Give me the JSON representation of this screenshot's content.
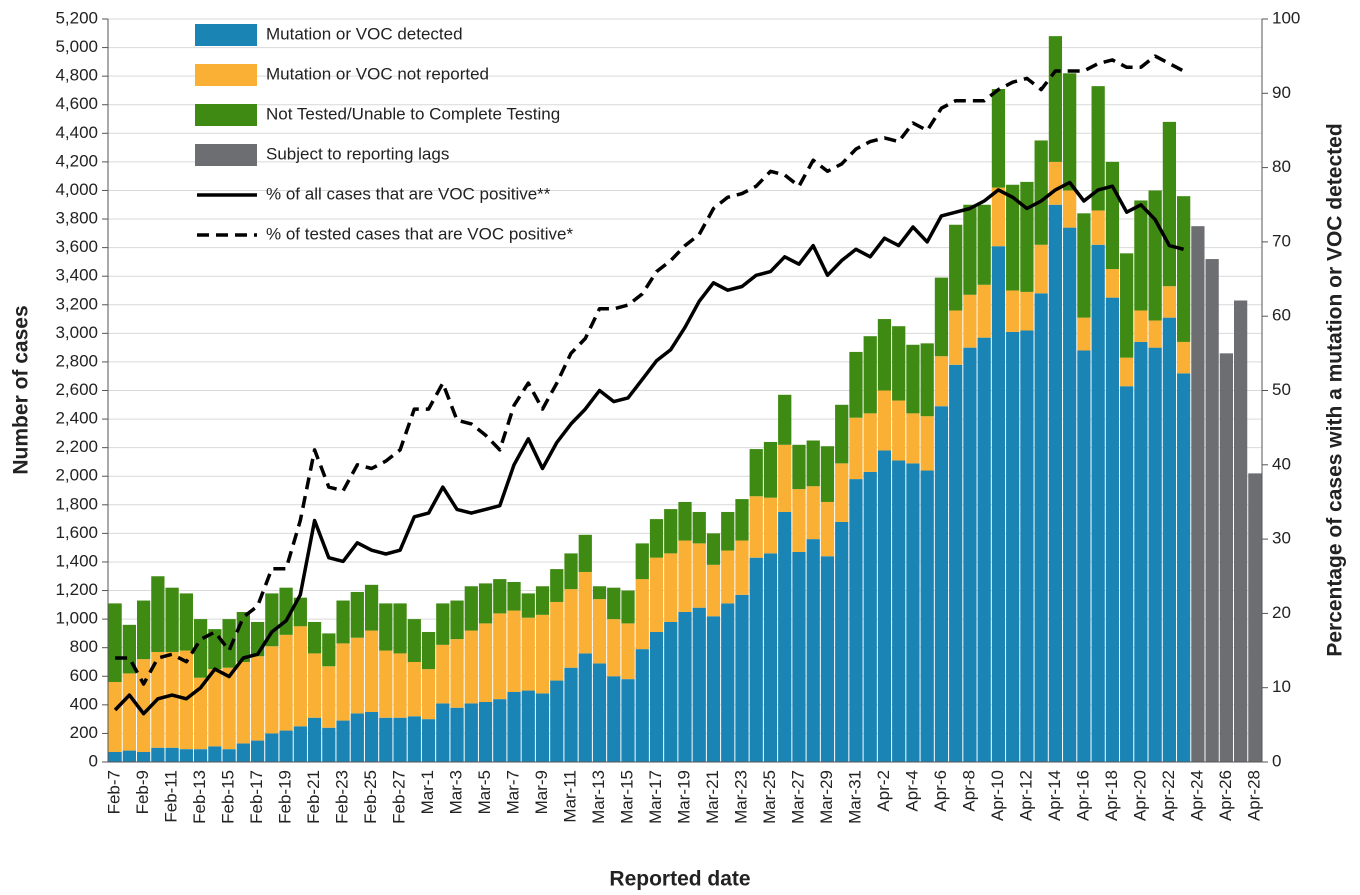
{
  "chart_data": {
    "type": "bar",
    "x_label": "Reported date",
    "y_label": "Number of cases",
    "y2_label": "Percentage of cases with a mutation or VOC detected",
    "stacked": true,
    "grid": true,
    "legend": "upper left",
    "categories": [
      "Feb-7",
      null,
      "Feb-9",
      null,
      "Feb-11",
      null,
      "Feb-13",
      null,
      "Feb-15",
      null,
      "Feb-17",
      null,
      "Feb-19",
      null,
      "Feb-21",
      null,
      "Feb-23",
      null,
      "Feb-25",
      null,
      "Feb-27",
      null,
      "Mar-1",
      null,
      "Mar-3",
      null,
      "Mar-5",
      null,
      "Mar-7",
      null,
      "Mar-9",
      null,
      "Mar-11",
      null,
      "Mar-13",
      null,
      "Mar-15",
      null,
      "Mar-17",
      null,
      "Mar-19",
      null,
      "Mar-21",
      null,
      "Mar-23",
      null,
      "Mar-25",
      null,
      "Mar-27",
      null,
      "Mar-29",
      null,
      "Mar-31",
      null,
      "Apr-2",
      null,
      "Apr-4",
      null,
      "Apr-6",
      null,
      "Apr-8",
      null,
      "Apr-10",
      null,
      "Apr-12",
      null,
      "Apr-14",
      null,
      "Apr-16",
      null,
      "Apr-18",
      null,
      "Apr-20",
      null,
      "Apr-22",
      null,
      "Apr-24",
      null,
      "Apr-26",
      null,
      "Apr-28"
    ],
    "ylim": [
      0,
      5200
    ],
    "yticks": [
      0,
      200,
      400,
      600,
      800,
      {
        "value": 1000,
        "label": "1,000"
      },
      {
        "value": 1200,
        "label": "1,200"
      },
      {
        "value": 1400,
        "label": "1,400"
      },
      {
        "value": 1600,
        "label": "1,600"
      },
      {
        "value": 1800,
        "label": "1,800"
      },
      {
        "value": 2000,
        "label": "2,000"
      },
      {
        "value": 2200,
        "label": "2,200"
      },
      {
        "value": 2400,
        "label": "2,400"
      },
      {
        "value": 2600,
        "label": "2,600"
      },
      {
        "value": 2800,
        "label": "2,800"
      },
      {
        "value": 3000,
        "label": "3,000"
      },
      {
        "value": 3200,
        "label": "3,200"
      },
      {
        "value": 3400,
        "label": "3,400"
      },
      {
        "value": 3600,
        "label": "3,600"
      },
      {
        "value": 3800,
        "label": "3,800"
      },
      {
        "value": 4000,
        "label": "4,000"
      },
      {
        "value": 4200,
        "label": "4,200"
      },
      {
        "value": 4400,
        "label": "4,400"
      },
      {
        "value": 4600,
        "label": "4,600"
      },
      {
        "value": 4800,
        "label": "4,800"
      },
      {
        "value": 5000,
        "label": "5,000"
      },
      {
        "value": 5200,
        "label": "5,200"
      }
    ],
    "y2lim": [
      0,
      100
    ],
    "y2ticks": [
      0,
      10,
      20,
      30,
      40,
      50,
      60,
      70,
      80,
      90,
      100
    ],
    "series": [
      {
        "name": "Mutation or VOC detected",
        "type": "bar",
        "color": "#1a85b5",
        "values": [
          70,
          80,
          70,
          100,
          100,
          90,
          90,
          110,
          90,
          130,
          150,
          200,
          220,
          250,
          310,
          240,
          290,
          340,
          350,
          310,
          310,
          320,
          300,
          410,
          380,
          410,
          420,
          440,
          490,
          500,
          480,
          570,
          660,
          760,
          690,
          600,
          580,
          790,
          910,
          980,
          1050,
          1080,
          1020,
          1110,
          1170,
          1430,
          1460,
          1750,
          1470,
          1560,
          1440,
          1680,
          1980,
          2030,
          2180,
          2110,
          2090,
          2040,
          2490,
          2780,
          2900,
          2970,
          3610,
          3010,
          3020,
          3280,
          3900,
          3740,
          2880,
          3620,
          3250,
          2630,
          2940,
          2900,
          3110,
          2720,
          null,
          null,
          null,
          null,
          null
        ]
      },
      {
        "name": "Mutation or VOC not reported",
        "type": "bar",
        "color": "#f9b035",
        "values": [
          490,
          540,
          650,
          670,
          670,
          690,
          500,
          540,
          570,
          570,
          590,
          610,
          670,
          700,
          450,
          430,
          540,
          530,
          570,
          470,
          450,
          380,
          350,
          410,
          480,
          510,
          550,
          600,
          570,
          510,
          550,
          550,
          550,
          570,
          450,
          400,
          390,
          490,
          520,
          480,
          500,
          450,
          360,
          370,
          380,
          430,
          390,
          470,
          440,
          370,
          380,
          410,
          430,
          410,
          420,
          420,
          350,
          380,
          350,
          380,
          370,
          370,
          410,
          290,
          270,
          340,
          300,
          260,
          230,
          240,
          200,
          200,
          220,
          190,
          220,
          220,
          null,
          null,
          null,
          null,
          null
        ]
      },
      {
        "name": "Not Tested/Unable to Complete Testing",
        "type": "bar",
        "color": "#3f8a12",
        "values": [
          550,
          340,
          410,
          530,
          450,
          400,
          410,
          280,
          340,
          350,
          240,
          370,
          330,
          200,
          220,
          230,
          300,
          320,
          320,
          330,
          350,
          300,
          260,
          290,
          270,
          310,
          280,
          240,
          200,
          170,
          200,
          230,
          250,
          260,
          90,
          220,
          230,
          250,
          270,
          310,
          270,
          220,
          220,
          270,
          290,
          330,
          390,
          350,
          310,
          320,
          390,
          410,
          460,
          540,
          500,
          520,
          480,
          510,
          550,
          600,
          630,
          560,
          690,
          740,
          770,
          730,
          880,
          820,
          730,
          870,
          750,
          730,
          770,
          910,
          1150,
          1020,
          null,
          null,
          null,
          null,
          null
        ]
      },
      {
        "name": "Subject to reporting lags",
        "type": "bar",
        "color": "#6d6e71",
        "values": [
          null,
          null,
          null,
          null,
          null,
          null,
          null,
          null,
          null,
          null,
          null,
          null,
          null,
          null,
          null,
          null,
          null,
          null,
          null,
          null,
          null,
          null,
          null,
          null,
          null,
          null,
          null,
          null,
          null,
          null,
          null,
          null,
          null,
          null,
          null,
          null,
          null,
          null,
          null,
          null,
          null,
          null,
          null,
          null,
          null,
          null,
          null,
          null,
          null,
          null,
          null,
          null,
          null,
          null,
          null,
          null,
          null,
          null,
          null,
          null,
          null,
          null,
          null,
          null,
          null,
          null,
          null,
          null,
          null,
          null,
          null,
          null,
          null,
          null,
          null,
          null,
          3750,
          3520,
          2860,
          3230,
          2020
        ]
      },
      {
        "name": "% of all cases that are VOC positive**",
        "type": "line",
        "axis": "y2",
        "color": "#000000",
        "dashed": false,
        "values": [
          7,
          9,
          6.5,
          8.5,
          9,
          8.5,
          10,
          12.5,
          11.5,
          14,
          14.5,
          17.5,
          19,
          22.5,
          32.5,
          27.5,
          27,
          29.5,
          28.5,
          28,
          28.5,
          33,
          33.5,
          37,
          34,
          33.5,
          34,
          34.5,
          40,
          43.5,
          39.5,
          43,
          45.5,
          47.5,
          50,
          48.5,
          49,
          51.5,
          54,
          55.5,
          58.5,
          62,
          64.5,
          63.5,
          64,
          65.5,
          66,
          68,
          67,
          69.5,
          65.5,
          67.5,
          69,
          68,
          70.5,
          69.5,
          72,
          70,
          73.5,
          74,
          74.5,
          75.5,
          77,
          76,
          74.5,
          75.5,
          77,
          78,
          75.5,
          77,
          77.5,
          74,
          75,
          73,
          69.5,
          69,
          null,
          null,
          null,
          null,
          null
        ]
      },
      {
        "name": "% of tested cases that are VOC positive*",
        "type": "line",
        "axis": "y2",
        "color": "#000000",
        "dashed": true,
        "values": [
          14,
          14,
          10.5,
          14,
          14.5,
          13.5,
          16.5,
          17.5,
          15,
          19.5,
          21,
          26,
          26,
          32.5,
          42,
          37,
          36.5,
          40,
          39.5,
          40.5,
          42,
          47.5,
          47.5,
          51,
          46,
          45.5,
          44,
          42,
          48,
          51,
          47.5,
          51,
          55,
          57,
          61,
          61,
          61.5,
          63,
          66,
          67.5,
          69.5,
          71,
          74.5,
          76,
          76.5,
          77.5,
          79.5,
          79,
          77.5,
          81,
          79.5,
          80.5,
          82.5,
          83.5,
          84,
          83.5,
          86,
          85,
          88,
          89,
          89,
          89,
          90.5,
          91.5,
          92,
          90.5,
          93,
          93,
          93,
          94,
          94.5,
          93.5,
          93.5,
          95,
          94,
          93,
          null,
          null,
          null,
          null,
          null
        ]
      }
    ]
  }
}
